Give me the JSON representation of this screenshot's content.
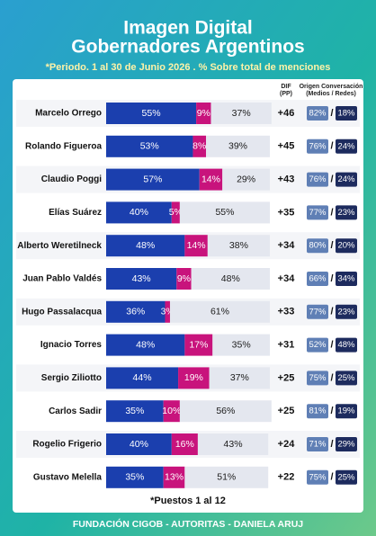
{
  "chart_data": {
    "type": "stacked-bar",
    "title": [
      "Imagen Digital",
      "Gobernadores Argentinos"
    ],
    "subtitle": "*Periodo. 1 al 30 de Junio 2026 . % Sobre total de menciones",
    "categories": [
      "Marcelo Orrego",
      "Rolando Figueroa",
      "Claudio Poggi",
      "Elías Suárez",
      "Alberto Weretilneck",
      "Juan Pablo Valdés",
      "Hugo Passalacqua",
      "Ignacio Torres",
      "Sergio Ziliotto",
      "Carlos Sadir",
      "Rogelio Frigerio",
      "Gustavo Melella"
    ],
    "series": [
      {
        "color": "#1b3fae",
        "text_color": "#ffffff",
        "values": [
          55,
          53,
          57,
          40,
          48,
          43,
          36,
          48,
          44,
          35,
          40,
          35
        ],
        "value_labels": [
          "55%",
          "53%",
          "57%",
          "40%",
          "48%",
          "43%",
          "36%",
          "48%",
          "44%",
          "35%",
          "40%",
          "35%"
        ]
      },
      {
        "color": "#c8137c",
        "text_color": "#ffffff",
        "values": [
          9,
          8,
          14,
          5,
          14,
          9,
          3,
          17,
          19,
          10,
          16,
          13
        ],
        "value_labels": [
          "9%",
          "8%",
          "14%",
          "5%",
          "14%",
          "9%",
          "3%",
          "17%",
          "19%",
          "10%",
          "16%",
          "13%"
        ]
      },
      {
        "color": "#e4e7ef",
        "text_color": "#1a1a1a",
        "values": [
          37,
          39,
          29,
          55,
          38,
          48,
          61,
          35,
          37,
          56,
          43,
          51
        ],
        "value_labels": [
          "37%",
          "39%",
          "29%",
          "55%",
          "38%",
          "48%",
          "61%",
          "35%",
          "37%",
          "56%",
          "43%",
          "51%"
        ]
      }
    ],
    "dif_header": [
      "DIF",
      "(PP)"
    ],
    "dif": [
      "+46",
      "+45",
      "+43",
      "+35",
      "+34",
      "+34",
      "+33",
      "+31",
      "+25",
      "+25",
      "+24",
      "+22"
    ],
    "origin_header": [
      "Origen Conversación",
      "(Medios / Redes)"
    ],
    "origin_medios": [
      "82%",
      "76%",
      "76%",
      "77%",
      "80%",
      "66%",
      "77%",
      "52%",
      "75%",
      "81%",
      "71%",
      "75%"
    ],
    "origin_separator": "/",
    "origin_redes": [
      "18%",
      "24%",
      "24%",
      "23%",
      "20%",
      "34%",
      "23%",
      "48%",
      "25%",
      "19%",
      "29%",
      "25%"
    ],
    "footnote": "*Puestos 1 al 12",
    "footer": "FUNDACIÓN CIGOB - AUTORITAS - DANIELA ARUJ"
  }
}
